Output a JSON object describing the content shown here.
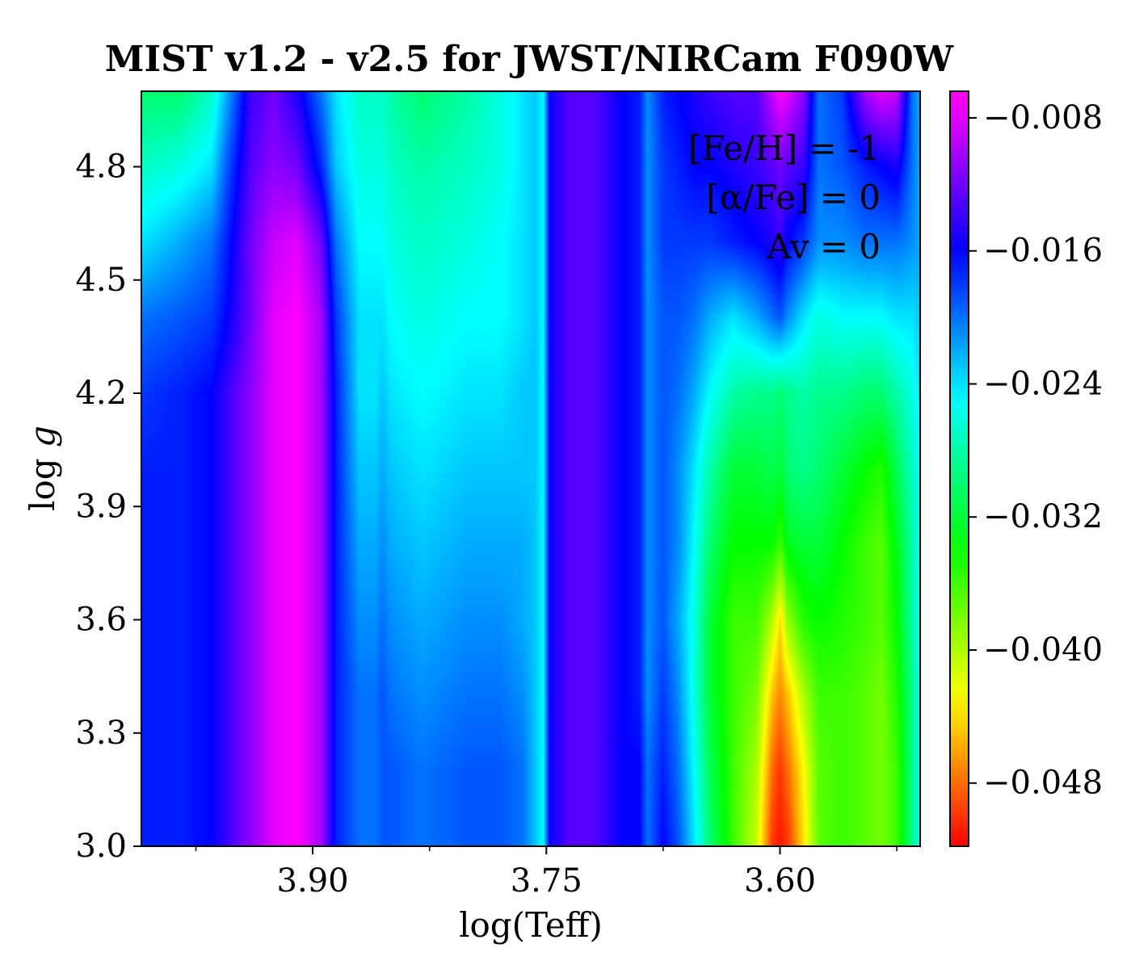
{
  "chart_data": {
    "type": "heatmap",
    "title": "MIST v1.2 - v2.5 for JWST/NIRCam F090W",
    "xlabel": "log(Teff)",
    "ylabel": "log g",
    "xlim": [
      4.01,
      3.51
    ],
    "ylim": [
      3.0,
      5.0
    ],
    "x_inverted": true,
    "xticks": [
      {
        "value": 3.9,
        "label": "3.90"
      },
      {
        "value": 3.75,
        "label": "3.75"
      },
      {
        "value": 3.6,
        "label": "3.60"
      }
    ],
    "xminor": [
      3.975,
      3.825,
      3.675,
      3.525
    ],
    "yticks": [
      {
        "value": 3.0,
        "label": "3.0"
      },
      {
        "value": 3.3,
        "label": "3.3"
      },
      {
        "value": 3.6,
        "label": "3.6"
      },
      {
        "value": 3.9,
        "label": "3.9"
      },
      {
        "value": 4.2,
        "label": "4.2"
      },
      {
        "value": 4.5,
        "label": "4.5"
      },
      {
        "value": 4.8,
        "label": "4.8"
      }
    ],
    "colorbar": {
      "colormap": "gist_rainbow",
      "range": [
        -0.0518,
        -0.0064
      ],
      "ticks": [
        {
          "value": -0.008,
          "label": "−0.008"
        },
        {
          "value": -0.016,
          "label": "−0.016"
        },
        {
          "value": -0.024,
          "label": "−0.024"
        },
        {
          "value": -0.032,
          "label": "−0.032"
        },
        {
          "value": -0.04,
          "label": "−0.040"
        },
        {
          "value": -0.048,
          "label": "−0.048"
        }
      ]
    },
    "annotations": [
      "[Fe/H] = -1",
      "[α/Fe] = 0",
      "Av = 0"
    ],
    "grid": false,
    "description_of_field": {
      "columns_logTeff": [
        4.01,
        3.985,
        3.965,
        3.955,
        3.94,
        3.925,
        3.91,
        3.895,
        3.885,
        3.87,
        3.86,
        3.855,
        3.85,
        3.83,
        3.8,
        3.78,
        3.765,
        3.757,
        3.752,
        3.748,
        3.745,
        3.735,
        3.72,
        3.7,
        3.69,
        3.685,
        3.675,
        3.665,
        3.655,
        3.645,
        3.63,
        3.615,
        3.605,
        3.6,
        3.595,
        3.585,
        3.575,
        3.56,
        3.545,
        3.535,
        3.525,
        3.515,
        3.51
      ],
      "rows_logg": [
        5.0,
        4.8,
        4.6,
        4.4,
        4.2,
        4.0,
        3.8,
        3.6,
        3.4,
        3.2,
        3.0
      ],
      "values": [
        [
          -0.03,
          -0.03,
          -0.027,
          -0.022,
          -0.014,
          -0.012,
          -0.015,
          -0.02,
          -0.024,
          -0.027,
          -0.027,
          -0.027,
          -0.028,
          -0.03,
          -0.028,
          -0.026,
          -0.024,
          -0.023,
          -0.025,
          -0.016,
          -0.015,
          -0.013,
          -0.013,
          -0.016,
          -0.017,
          -0.021,
          -0.017,
          -0.016,
          -0.015,
          -0.014,
          -0.013,
          -0.013,
          -0.009,
          -0.007,
          -0.008,
          -0.011,
          -0.02,
          -0.018,
          -0.01,
          -0.008,
          -0.009,
          -0.02,
          -0.022
        ],
        [
          -0.027,
          -0.026,
          -0.024,
          -0.019,
          -0.013,
          -0.011,
          -0.012,
          -0.017,
          -0.023,
          -0.026,
          -0.026,
          -0.026,
          -0.027,
          -0.028,
          -0.027,
          -0.026,
          -0.024,
          -0.023,
          -0.025,
          -0.016,
          -0.015,
          -0.013,
          -0.013,
          -0.016,
          -0.017,
          -0.021,
          -0.018,
          -0.017,
          -0.016,
          -0.016,
          -0.015,
          -0.014,
          -0.013,
          -0.012,
          -0.013,
          -0.014,
          -0.02,
          -0.019,
          -0.017,
          -0.016,
          -0.015,
          -0.02,
          -0.022
        ],
        [
          -0.024,
          -0.022,
          -0.02,
          -0.017,
          -0.012,
          -0.009,
          -0.008,
          -0.012,
          -0.02,
          -0.025,
          -0.025,
          -0.025,
          -0.026,
          -0.027,
          -0.026,
          -0.025,
          -0.024,
          -0.023,
          -0.025,
          -0.016,
          -0.015,
          -0.013,
          -0.013,
          -0.016,
          -0.017,
          -0.021,
          -0.018,
          -0.018,
          -0.018,
          -0.018,
          -0.017,
          -0.016,
          -0.015,
          -0.014,
          -0.016,
          -0.018,
          -0.021,
          -0.021,
          -0.02,
          -0.02,
          -0.02,
          -0.021,
          -0.022
        ],
        [
          -0.02,
          -0.019,
          -0.018,
          -0.016,
          -0.012,
          -0.008,
          -0.007,
          -0.01,
          -0.018,
          -0.024,
          -0.024,
          -0.024,
          -0.025,
          -0.026,
          -0.025,
          -0.025,
          -0.024,
          -0.023,
          -0.025,
          -0.016,
          -0.015,
          -0.013,
          -0.013,
          -0.016,
          -0.017,
          -0.021,
          -0.019,
          -0.019,
          -0.02,
          -0.022,
          -0.024,
          -0.022,
          -0.02,
          -0.019,
          -0.021,
          -0.024,
          -0.026,
          -0.025,
          -0.025,
          -0.025,
          -0.024,
          -0.024,
          -0.023
        ],
        [
          -0.018,
          -0.017,
          -0.016,
          -0.014,
          -0.011,
          -0.008,
          -0.007,
          -0.01,
          -0.017,
          -0.024,
          -0.024,
          -0.023,
          -0.024,
          -0.025,
          -0.024,
          -0.024,
          -0.023,
          -0.023,
          -0.025,
          -0.016,
          -0.015,
          -0.013,
          -0.013,
          -0.016,
          -0.017,
          -0.021,
          -0.019,
          -0.02,
          -0.022,
          -0.025,
          -0.028,
          -0.029,
          -0.029,
          -0.03,
          -0.029,
          -0.028,
          -0.029,
          -0.029,
          -0.03,
          -0.03,
          -0.028,
          -0.026,
          -0.024
        ],
        [
          -0.017,
          -0.017,
          -0.016,
          -0.014,
          -0.011,
          -0.008,
          -0.007,
          -0.01,
          -0.017,
          -0.023,
          -0.023,
          -0.022,
          -0.023,
          -0.024,
          -0.023,
          -0.023,
          -0.023,
          -0.023,
          -0.025,
          -0.016,
          -0.015,
          -0.013,
          -0.013,
          -0.016,
          -0.017,
          -0.021,
          -0.019,
          -0.021,
          -0.024,
          -0.028,
          -0.032,
          -0.032,
          -0.031,
          -0.032,
          -0.03,
          -0.029,
          -0.03,
          -0.032,
          -0.034,
          -0.035,
          -0.031,
          -0.027,
          -0.025
        ],
        [
          -0.017,
          -0.017,
          -0.016,
          -0.014,
          -0.011,
          -0.008,
          -0.007,
          -0.01,
          -0.017,
          -0.022,
          -0.022,
          -0.021,
          -0.022,
          -0.023,
          -0.022,
          -0.022,
          -0.022,
          -0.023,
          -0.025,
          -0.016,
          -0.015,
          -0.013,
          -0.013,
          -0.016,
          -0.017,
          -0.021,
          -0.019,
          -0.021,
          -0.025,
          -0.03,
          -0.034,
          -0.034,
          -0.034,
          -0.036,
          -0.033,
          -0.032,
          -0.032,
          -0.034,
          -0.036,
          -0.037,
          -0.033,
          -0.028,
          -0.025
        ],
        [
          -0.017,
          -0.017,
          -0.016,
          -0.014,
          -0.011,
          -0.008,
          -0.007,
          -0.01,
          -0.017,
          -0.021,
          -0.021,
          -0.02,
          -0.021,
          -0.022,
          -0.021,
          -0.021,
          -0.022,
          -0.023,
          -0.025,
          -0.016,
          -0.015,
          -0.013,
          -0.013,
          -0.016,
          -0.017,
          -0.021,
          -0.019,
          -0.022,
          -0.026,
          -0.032,
          -0.036,
          -0.036,
          -0.04,
          -0.044,
          -0.039,
          -0.035,
          -0.034,
          -0.035,
          -0.036,
          -0.037,
          -0.034,
          -0.028,
          -0.025
        ],
        [
          -0.017,
          -0.017,
          -0.016,
          -0.014,
          -0.011,
          -0.008,
          -0.007,
          -0.01,
          -0.017,
          -0.02,
          -0.02,
          -0.019,
          -0.02,
          -0.021,
          -0.02,
          -0.02,
          -0.021,
          -0.023,
          -0.025,
          -0.016,
          -0.015,
          -0.013,
          -0.013,
          -0.016,
          -0.017,
          -0.021,
          -0.018,
          -0.021,
          -0.026,
          -0.032,
          -0.036,
          -0.038,
          -0.045,
          -0.047,
          -0.045,
          -0.04,
          -0.036,
          -0.036,
          -0.037,
          -0.038,
          -0.035,
          -0.029,
          -0.025
        ],
        [
          -0.017,
          -0.017,
          -0.016,
          -0.014,
          -0.011,
          -0.008,
          -0.007,
          -0.01,
          -0.017,
          -0.02,
          -0.02,
          -0.019,
          -0.019,
          -0.02,
          -0.019,
          -0.019,
          -0.02,
          -0.023,
          -0.025,
          -0.016,
          -0.015,
          -0.013,
          -0.013,
          -0.016,
          -0.016,
          -0.02,
          -0.017,
          -0.02,
          -0.025,
          -0.031,
          -0.036,
          -0.04,
          -0.048,
          -0.05,
          -0.048,
          -0.043,
          -0.037,
          -0.036,
          -0.037,
          -0.038,
          -0.036,
          -0.029,
          -0.025
        ],
        [
          -0.017,
          -0.017,
          -0.016,
          -0.014,
          -0.011,
          -0.008,
          -0.007,
          -0.01,
          -0.017,
          -0.02,
          -0.02,
          -0.019,
          -0.019,
          -0.02,
          -0.019,
          -0.019,
          -0.02,
          -0.023,
          -0.025,
          -0.016,
          -0.015,
          -0.013,
          -0.013,
          -0.016,
          -0.016,
          -0.02,
          -0.016,
          -0.019,
          -0.024,
          -0.03,
          -0.036,
          -0.041,
          -0.05,
          -0.051,
          -0.05,
          -0.044,
          -0.037,
          -0.036,
          -0.037,
          -0.038,
          -0.036,
          -0.029,
          -0.025
        ]
      ]
    }
  }
}
